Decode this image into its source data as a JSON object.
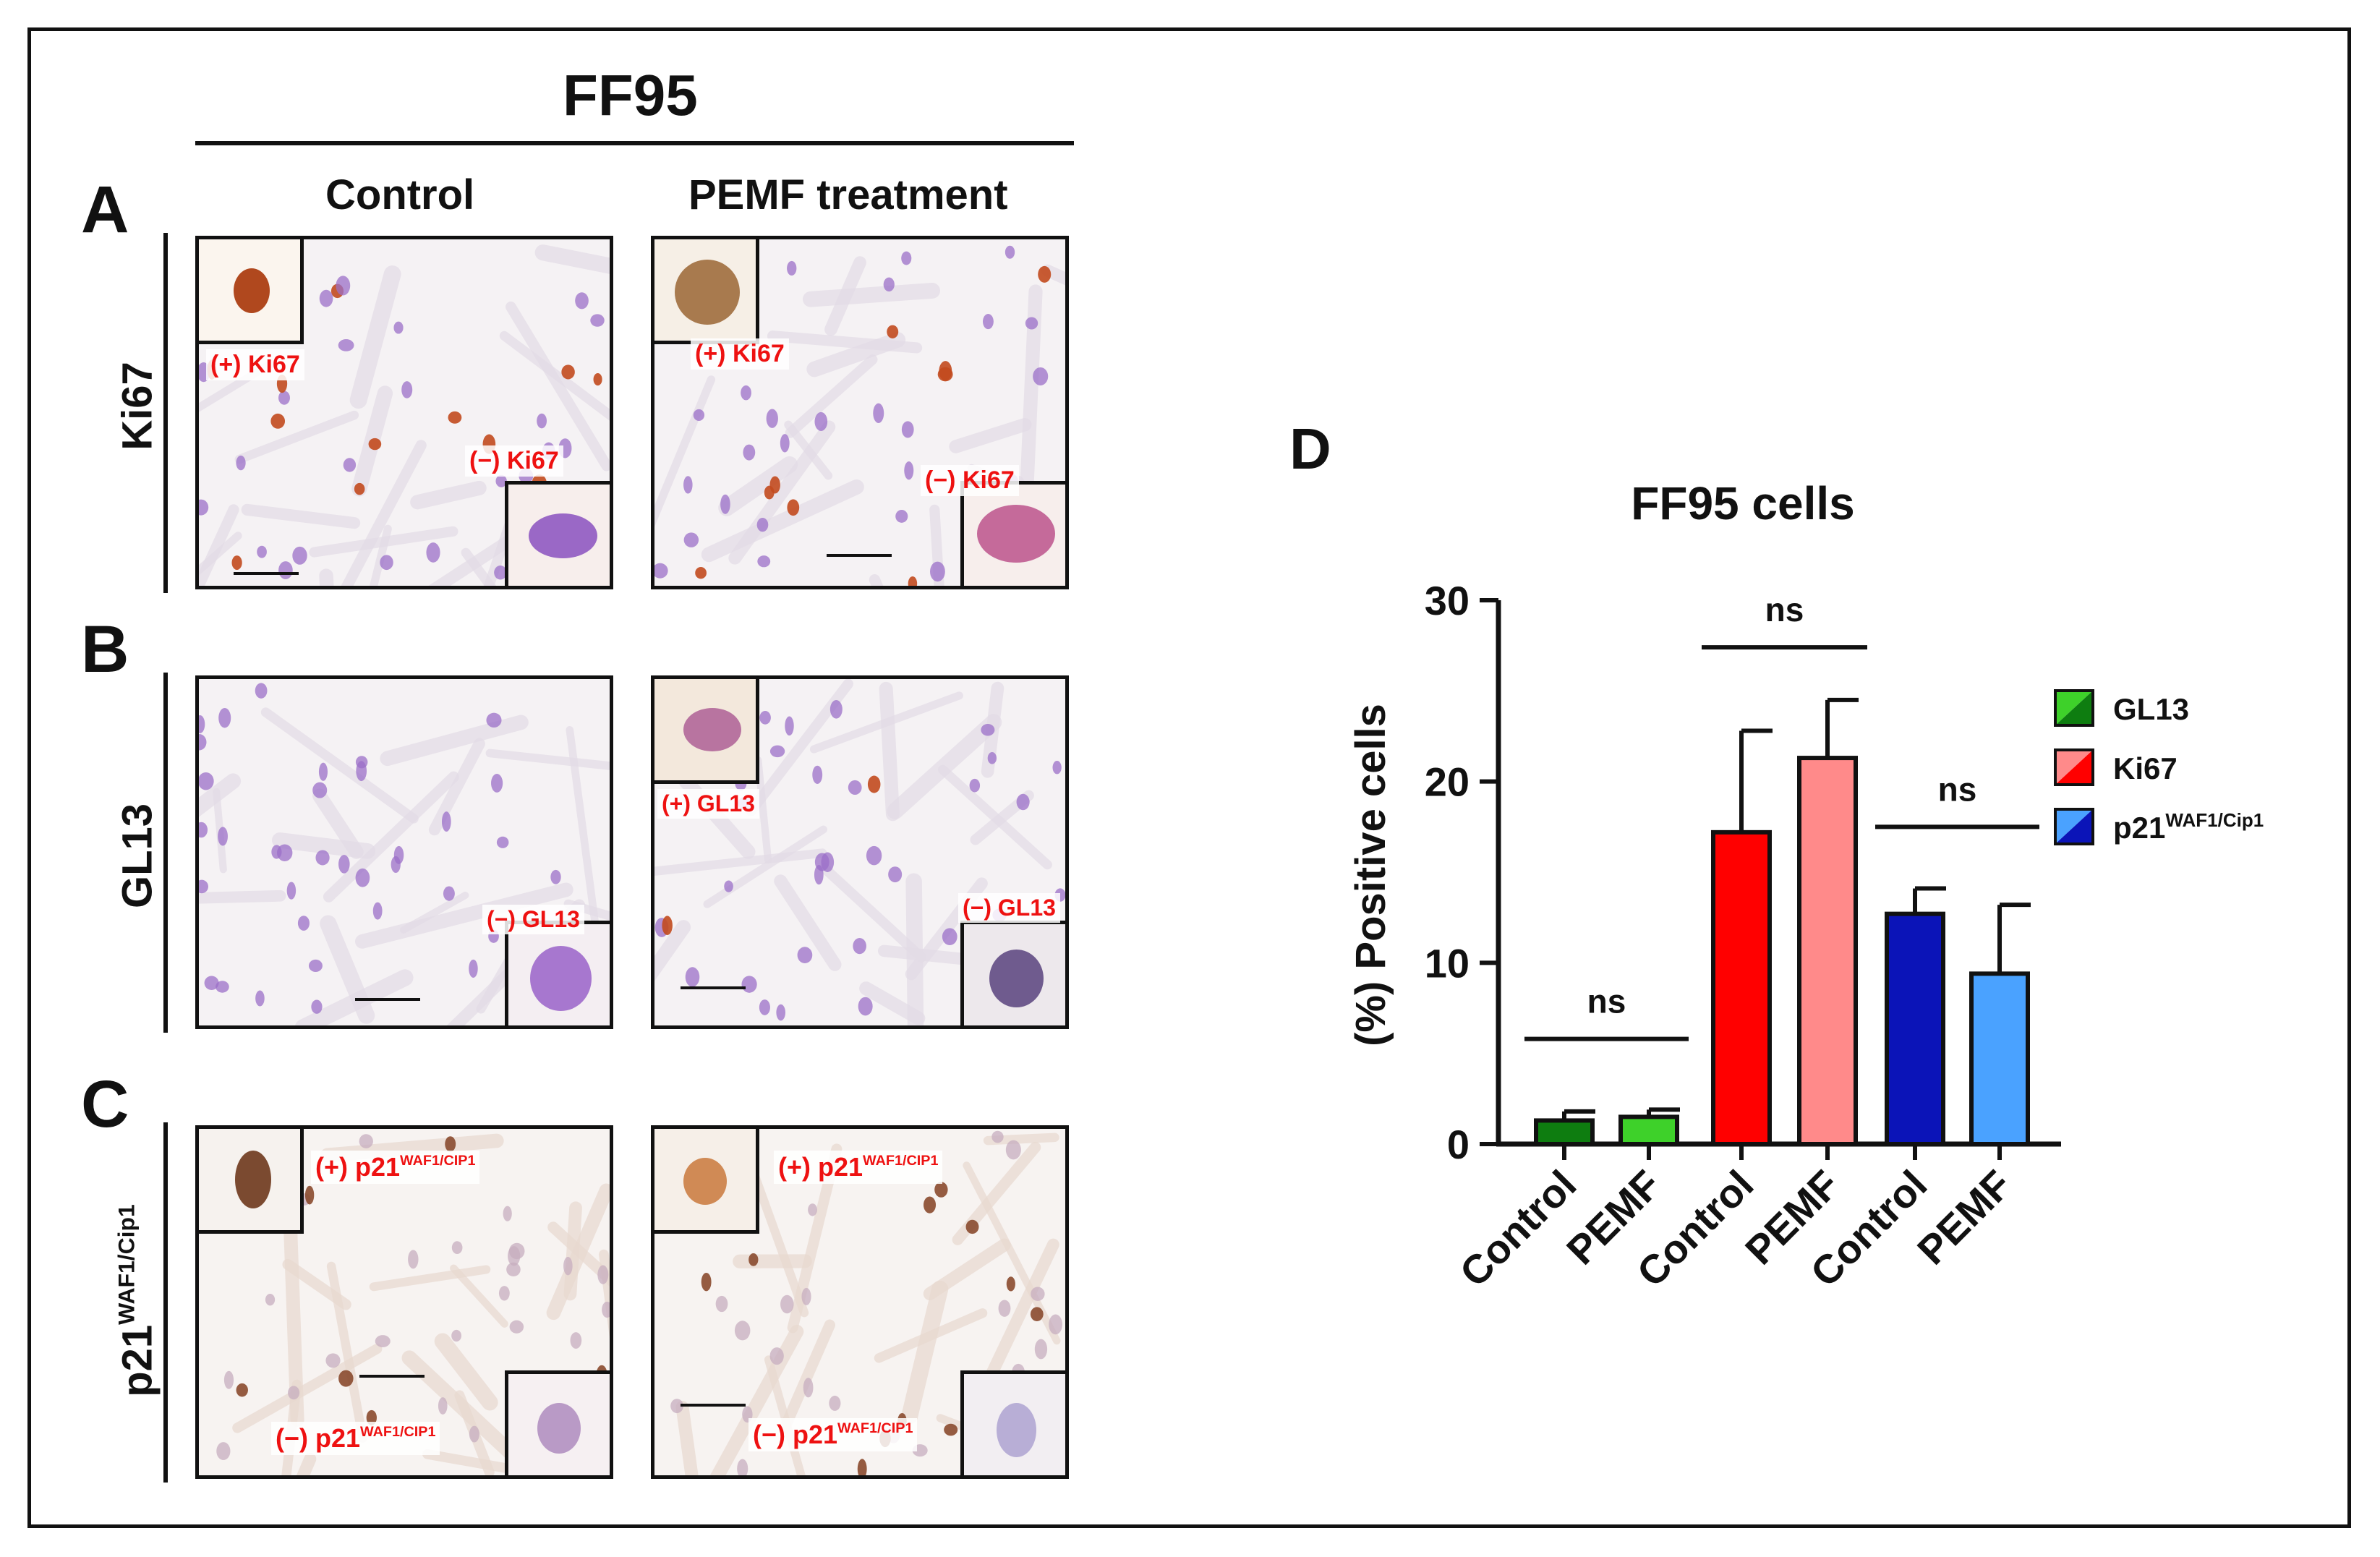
{
  "figure": {
    "title": "FF95",
    "col_headers": [
      "Control",
      "PEMF treatment"
    ],
    "row_labels": {
      "A": {
        "letter": "A",
        "marker": "Ki67",
        "pos": "(+) Ki67",
        "neg": "(−) Ki67"
      },
      "B": {
        "letter": "B",
        "marker": "GL13",
        "pos": "(+) GL13",
        "neg": "(−) GL13"
      },
      "C": {
        "letter": "C",
        "marker_base": "p21",
        "marker_sup": "WAF1/Cip1",
        "pos_base": "(+) p21",
        "neg_base": "(−) p21",
        "label_sup": "WAF1/CIP1"
      }
    },
    "panel_d_letter": "D"
  },
  "colors": {
    "gl13_control": "#0e7d10",
    "gl13_pemf": "#3ed12a",
    "ki67_control": "#ff0000",
    "ki67_pemf": "#ff8a8a",
    "p21_control": "#0b14b8",
    "p21_pemf": "#4aa2ff",
    "label_red": "#e11111",
    "nucleus_purple": "#9b6fc8",
    "nucleus_brown": "#b5612a"
  },
  "chart_data": {
    "type": "bar",
    "title": "FF95 cells",
    "ylabel": "(%) Positive cells",
    "xlabel": "",
    "ylim": [
      0,
      30
    ],
    "yticks": [
      0,
      10,
      20,
      30
    ],
    "categories": [
      "Control",
      "PEMF",
      "Control",
      "PEMF",
      "Control",
      "PEMF"
    ],
    "groups": [
      "GL13",
      "GL13",
      "Ki67",
      "Ki67",
      "p21WAF1/Cip1",
      "p21WAF1/Cip1"
    ],
    "values": [
      1.3,
      1.5,
      17.2,
      21.3,
      12.7,
      9.4
    ],
    "errors": [
      0.5,
      0.4,
      5.6,
      3.2,
      1.4,
      3.8
    ],
    "significance": [
      {
        "pair": [
          0,
          1
        ],
        "label": "ns",
        "level": 5.8
      },
      {
        "pair": [
          2,
          3
        ],
        "label": "ns",
        "level": 27.4
      },
      {
        "pair": [
          4,
          5
        ],
        "label": "ns",
        "level": 17.5
      }
    ],
    "legend": [
      {
        "label_base": "GL13",
        "label_sup": "",
        "color_a": "#0e7d10",
        "color_b": "#3ed12a"
      },
      {
        "label_base": "Ki67",
        "label_sup": "",
        "color_a": "#ff0000",
        "color_b": "#ff8a8a"
      },
      {
        "label_base": "p21",
        "label_sup": "WAF1/Cip1",
        "color_a": "#0b14b8",
        "color_b": "#4aa2ff"
      }
    ],
    "legend_position": "right"
  }
}
